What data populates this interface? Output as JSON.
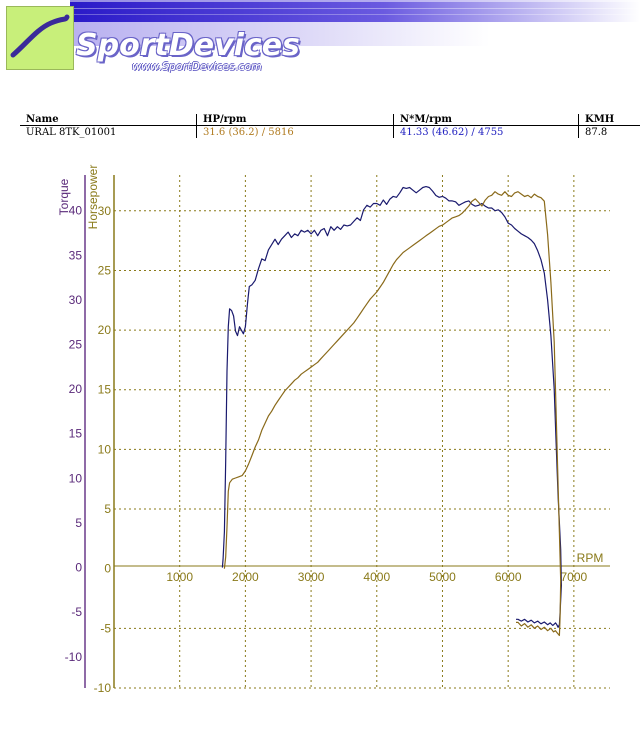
{
  "header": {
    "brand_name": "SportDevices",
    "brand_url": "www.SportDevices.com",
    "colors": {
      "logo_green": "#c8ef7a",
      "banner_purple": "#3a2ad0",
      "brand_outline": "#6a64c8"
    }
  },
  "table": {
    "columns": [
      "Name",
      "HP/rpm",
      "N*M/rpm",
      "KMH"
    ],
    "rows": [
      {
        "name": "URAL 8TK_01001",
        "hp_rpm": "31.6 (36.2) / 5816",
        "nm_rpm": "41.33 (46.62) / 4755",
        "kmh": "87.8"
      }
    ]
  },
  "chart_data": {
    "type": "line",
    "x_axis": {
      "label": "RPM",
      "range": [
        0,
        7200
      ],
      "ticks": [
        "1000",
        "2000",
        "3000",
        "4000",
        "5000",
        "6000",
        "7000"
      ]
    },
    "y_left": {
      "label": "Torque",
      "range": [
        -13.5,
        44
      ],
      "ticks": [
        "40",
        "35",
        "30",
        "25",
        "20",
        "15",
        "10",
        "5",
        "0",
        "-5",
        "-10"
      ]
    },
    "y_right": {
      "label": "Horsepower",
      "range": [
        -10,
        33
      ],
      "ticks": [
        "30",
        "25",
        "20",
        "15",
        "10",
        "5",
        "0",
        "-5",
        "-10"
      ]
    },
    "grid": true,
    "series": [
      {
        "color": "#1a1a6e",
        "axis": "left",
        "points": [
          [
            1650,
            0
          ],
          [
            1660,
            1
          ],
          [
            1680,
            4
          ],
          [
            1700,
            12
          ],
          [
            1720,
            22
          ],
          [
            1740,
            27
          ],
          [
            1760,
            29
          ],
          [
            1790,
            28.8
          ],
          [
            1820,
            28.2
          ],
          [
            1850,
            26.5
          ],
          [
            1880,
            26
          ],
          [
            1910,
            27
          ],
          [
            1940,
            26.6
          ],
          [
            1970,
            26.2
          ],
          [
            2000,
            27
          ],
          [
            2030,
            29.5
          ],
          [
            2060,
            31.5
          ],
          [
            2100,
            31.7
          ],
          [
            2150,
            32.2
          ],
          [
            2200,
            33.5
          ],
          [
            2250,
            34.6
          ],
          [
            2300,
            34.4
          ],
          [
            2350,
            35.6
          ],
          [
            2400,
            36.2
          ],
          [
            2450,
            36.8
          ],
          [
            2500,
            36.2
          ],
          [
            2550,
            36.8
          ],
          [
            2600,
            37.2
          ],
          [
            2650,
            37.6
          ],
          [
            2700,
            37
          ],
          [
            2750,
            37.4
          ],
          [
            2800,
            37.2
          ],
          [
            2850,
            37.8
          ],
          [
            2900,
            37.6
          ],
          [
            2950,
            37.8
          ],
          [
            3000,
            37.4
          ],
          [
            3050,
            37.8
          ],
          [
            3100,
            37.2
          ],
          [
            3150,
            37.8
          ],
          [
            3200,
            38
          ],
          [
            3250,
            37.2
          ],
          [
            3300,
            38.2
          ],
          [
            3350,
            37.8
          ],
          [
            3400,
            38.2
          ],
          [
            3450,
            37.9
          ],
          [
            3500,
            38.4
          ],
          [
            3550,
            38.3
          ],
          [
            3600,
            38.4
          ],
          [
            3650,
            38.8
          ],
          [
            3700,
            39.2
          ],
          [
            3750,
            38.9
          ],
          [
            3800,
            40.1
          ],
          [
            3850,
            40.6
          ],
          [
            3900,
            40.4
          ],
          [
            3950,
            40.8
          ],
          [
            4000,
            40.8
          ],
          [
            4050,
            40.6
          ],
          [
            4100,
            41.2
          ],
          [
            4150,
            40.7
          ],
          [
            4200,
            41.3
          ],
          [
            4250,
            41.6
          ],
          [
            4300,
            41.5
          ],
          [
            4350,
            42
          ],
          [
            4400,
            42.6
          ],
          [
            4450,
            42.5
          ],
          [
            4500,
            42.6
          ],
          [
            4550,
            42.3
          ],
          [
            4600,
            42
          ],
          [
            4650,
            42.3
          ],
          [
            4700,
            42.6
          ],
          [
            4750,
            42.7
          ],
          [
            4800,
            42.6
          ],
          [
            4850,
            42.2
          ],
          [
            4900,
            41.7
          ],
          [
            4950,
            41.5
          ],
          [
            5000,
            41.6
          ],
          [
            5050,
            41.4
          ],
          [
            5100,
            41.1
          ],
          [
            5150,
            41.1
          ],
          [
            5200,
            41
          ],
          [
            5250,
            40.6
          ],
          [
            5300,
            40.8
          ],
          [
            5350,
            41
          ],
          [
            5400,
            41.1
          ],
          [
            5450,
            40.7
          ],
          [
            5500,
            40.5
          ],
          [
            5550,
            40.6
          ],
          [
            5600,
            40.8
          ],
          [
            5650,
            40.5
          ],
          [
            5700,
            40.3
          ],
          [
            5750,
            40.3
          ],
          [
            5800,
            40
          ],
          [
            5850,
            40.1
          ],
          [
            5900,
            39.8
          ],
          [
            5950,
            39.3
          ],
          [
            6000,
            38.6
          ],
          [
            6050,
            38.4
          ],
          [
            6100,
            38
          ],
          [
            6150,
            37.7
          ],
          [
            6200,
            37.4
          ],
          [
            6250,
            37.2
          ],
          [
            6300,
            37
          ],
          [
            6350,
            36.7
          ],
          [
            6400,
            36.3
          ],
          [
            6450,
            35.5
          ],
          [
            6500,
            34.5
          ],
          [
            6550,
            33
          ],
          [
            6600,
            30
          ],
          [
            6650,
            26
          ],
          [
            6700,
            20
          ],
          [
            6730,
            14
          ],
          [
            6760,
            8
          ],
          [
            6800,
            2
          ],
          [
            6810,
            -2
          ],
          [
            6790,
            -5
          ],
          [
            6780,
            -6.4
          ],
          [
            6760,
            -6.7
          ],
          [
            6740,
            -6.4
          ],
          [
            6720,
            -6.2
          ],
          [
            6680,
            -6.5
          ],
          [
            6640,
            -6.2
          ],
          [
            6600,
            -6.4
          ],
          [
            6550,
            -6.1
          ],
          [
            6500,
            -6.3
          ],
          [
            6450,
            -6
          ],
          [
            6400,
            -6.2
          ],
          [
            6350,
            -5.9
          ],
          [
            6300,
            -6.1
          ],
          [
            6250,
            -5.8
          ],
          [
            6200,
            -6
          ],
          [
            6150,
            -5.8
          ],
          [
            6120,
            -5.8
          ]
        ]
      },
      {
        "color": "#8a6a1a",
        "axis": "right",
        "points": [
          [
            1680,
            0
          ],
          [
            1700,
            1
          ],
          [
            1720,
            3.5
          ],
          [
            1740,
            6.5
          ],
          [
            1760,
            7.2
          ],
          [
            1800,
            7.5
          ],
          [
            1850,
            7.6
          ],
          [
            1900,
            7.7
          ],
          [
            1950,
            7.8
          ],
          [
            2000,
            8.2
          ],
          [
            2050,
            8.8
          ],
          [
            2100,
            9.5
          ],
          [
            2150,
            10.2
          ],
          [
            2200,
            10.8
          ],
          [
            2250,
            11.6
          ],
          [
            2300,
            12.2
          ],
          [
            2350,
            12.8
          ],
          [
            2400,
            13.2
          ],
          [
            2450,
            13.7
          ],
          [
            2500,
            14.1
          ],
          [
            2550,
            14.5
          ],
          [
            2600,
            14.9
          ],
          [
            2650,
            15.2
          ],
          [
            2700,
            15.5
          ],
          [
            2750,
            15.8
          ],
          [
            2800,
            16
          ],
          [
            2850,
            16.3
          ],
          [
            2900,
            16.5
          ],
          [
            2950,
            16.7
          ],
          [
            3000,
            16.9
          ],
          [
            3050,
            17.1
          ],
          [
            3100,
            17.3
          ],
          [
            3150,
            17.6
          ],
          [
            3200,
            17.9
          ],
          [
            3250,
            18.2
          ],
          [
            3300,
            18.5
          ],
          [
            3350,
            18.8
          ],
          [
            3400,
            19.1
          ],
          [
            3450,
            19.4
          ],
          [
            3500,
            19.7
          ],
          [
            3550,
            20
          ],
          [
            3600,
            20.3
          ],
          [
            3650,
            20.6
          ],
          [
            3700,
            21
          ],
          [
            3750,
            21.4
          ],
          [
            3800,
            21.8
          ],
          [
            3850,
            22.2
          ],
          [
            3900,
            22.6
          ],
          [
            3950,
            22.9
          ],
          [
            4000,
            23.2
          ],
          [
            4050,
            23.6
          ],
          [
            4100,
            24
          ],
          [
            4150,
            24.5
          ],
          [
            4200,
            25
          ],
          [
            4250,
            25.5
          ],
          [
            4300,
            25.9
          ],
          [
            4350,
            26.2
          ],
          [
            4400,
            26.5
          ],
          [
            4450,
            26.7
          ],
          [
            4500,
            26.9
          ],
          [
            4550,
            27.1
          ],
          [
            4600,
            27.3
          ],
          [
            4650,
            27.5
          ],
          [
            4700,
            27.7
          ],
          [
            4750,
            27.9
          ],
          [
            4800,
            28.1
          ],
          [
            4850,
            28.3
          ],
          [
            4900,
            28.5
          ],
          [
            4950,
            28.7
          ],
          [
            5000,
            28.8
          ],
          [
            5050,
            29
          ],
          [
            5100,
            29.2
          ],
          [
            5150,
            29.4
          ],
          [
            5200,
            29.5
          ],
          [
            5250,
            29.6
          ],
          [
            5300,
            29.8
          ],
          [
            5350,
            30.1
          ],
          [
            5400,
            30.4
          ],
          [
            5450,
            30.8
          ],
          [
            5500,
            31
          ],
          [
            5550,
            30.7
          ],
          [
            5600,
            30.4
          ],
          [
            5650,
            30.9
          ],
          [
            5700,
            31.2
          ],
          [
            5750,
            31.3
          ],
          [
            5800,
            31.6
          ],
          [
            5850,
            31.4
          ],
          [
            5900,
            31.3
          ],
          [
            5950,
            31.6
          ],
          [
            6000,
            31.3
          ],
          [
            6050,
            31.2
          ],
          [
            6100,
            31.5
          ],
          [
            6150,
            31.6
          ],
          [
            6200,
            31.4
          ],
          [
            6250,
            31.2
          ],
          [
            6300,
            31.3
          ],
          [
            6350,
            31.1
          ],
          [
            6400,
            31.4
          ],
          [
            6450,
            31.2
          ],
          [
            6500,
            31.1
          ],
          [
            6550,
            30.8
          ],
          [
            6600,
            28
          ],
          [
            6650,
            24
          ],
          [
            6700,
            19
          ],
          [
            6720,
            15
          ],
          [
            6740,
            11
          ],
          [
            6760,
            7
          ],
          [
            6780,
            3
          ],
          [
            6800,
            -1
          ],
          [
            6790,
            -4
          ],
          [
            6780,
            -5.6
          ],
          [
            6750,
            -5.4
          ],
          [
            6720,
            -5.2
          ],
          [
            6690,
            -5.3
          ],
          [
            6650,
            -5
          ],
          [
            6600,
            -5.2
          ],
          [
            6550,
            -4.9
          ],
          [
            6500,
            -5.1
          ],
          [
            6450,
            -4.8
          ],
          [
            6400,
            -5
          ],
          [
            6350,
            -4.7
          ],
          [
            6300,
            -4.9
          ],
          [
            6250,
            -4.6
          ],
          [
            6200,
            -4.8
          ],
          [
            6150,
            -4.5
          ],
          [
            6120,
            -4.5
          ]
        ]
      }
    ]
  }
}
